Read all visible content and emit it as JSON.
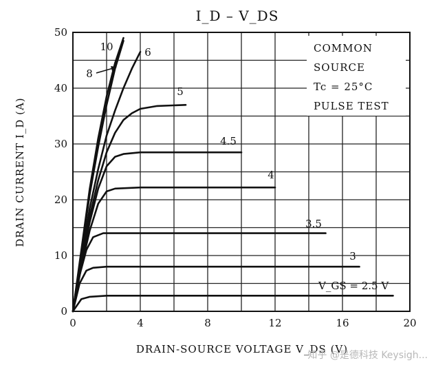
{
  "chart_data": {
    "type": "line",
    "title": "I_D – V_DS",
    "xlabel": "DRAIN-SOURCE VOLTAGE  V_DS  (V)",
    "ylabel": "DRAIN CURRENT  I_D  (A)",
    "xlim": [
      0,
      20
    ],
    "ylim": [
      0,
      50
    ],
    "x_ticks": [
      0,
      4,
      8,
      12,
      16,
      20
    ],
    "y_ticks": [
      0,
      10,
      20,
      30,
      40,
      50
    ],
    "x_grid": [
      0,
      2,
      4,
      6,
      8,
      10,
      12,
      14,
      16,
      18,
      20
    ],
    "y_grid": [
      0,
      5,
      10,
      15,
      20,
      25,
      30,
      35,
      40,
      45,
      50
    ],
    "grid": true,
    "legend": "none",
    "annotations": [
      "COMMON",
      "SOURCE",
      "Tc = 25°C",
      "PULSE TEST"
    ],
    "vgs_label_prefix": "V_GS = ",
    "vgs_label_unit": " V",
    "series": [
      {
        "label": "2.5",
        "x": [
          0,
          0.5,
          1,
          2,
          5,
          10,
          15,
          19
        ],
        "y": [
          0,
          2.2,
          2.6,
          2.8,
          2.8,
          2.8,
          2.8,
          2.8
        ]
      },
      {
        "label": "3",
        "x": [
          0,
          0.4,
          0.8,
          1.2,
          2,
          5,
          10,
          17
        ],
        "y": [
          0,
          5.0,
          7.3,
          7.8,
          8.0,
          8.0,
          8.0,
          8.0
        ]
      },
      {
        "label": "3.5",
        "x": [
          0,
          0.4,
          0.8,
          1.2,
          1.8,
          3,
          8,
          15
        ],
        "y": [
          0,
          6.5,
          11.0,
          13.3,
          14.0,
          14.0,
          14.0,
          14.0
        ]
      },
      {
        "label": "4",
        "x": [
          0,
          0.5,
          1,
          1.5,
          2,
          2.5,
          4,
          8,
          12
        ],
        "y": [
          0,
          8.0,
          14.5,
          19.3,
          21.5,
          22.0,
          22.2,
          22.2,
          22.2
        ]
      },
      {
        "label": "4.5",
        "x": [
          0,
          0.5,
          1,
          1.5,
          2,
          2.5,
          3,
          4,
          6,
          10
        ],
        "y": [
          0,
          8.5,
          16.0,
          22.0,
          26.0,
          27.7,
          28.2,
          28.5,
          28.5,
          28.5
        ]
      },
      {
        "label": "5",
        "x": [
          0,
          0.5,
          1,
          1.5,
          2,
          2.5,
          3,
          3.5,
          4,
          5,
          6.7
        ],
        "y": [
          0,
          9.0,
          17.0,
          23.5,
          28.5,
          32.0,
          34.3,
          35.5,
          36.3,
          36.8,
          37.0
        ]
      },
      {
        "label": "6",
        "x": [
          0,
          0.5,
          1,
          1.5,
          2,
          2.5,
          3,
          3.5,
          4
        ],
        "y": [
          0,
          9.5,
          18.5,
          25.5,
          31.5,
          36.0,
          40.0,
          43.5,
          46.5
        ]
      },
      {
        "label": "8",
        "x": [
          0,
          0.5,
          1,
          1.5,
          2,
          2.5,
          3
        ],
        "y": [
          0,
          10.5,
          21.0,
          29.5,
          37.0,
          43.5,
          48.5
        ]
      },
      {
        "label": "10",
        "x": [
          0,
          0.5,
          1,
          1.5,
          2,
          2.5,
          3
        ],
        "y": [
          0,
          11.0,
          22.0,
          31.0,
          38.5,
          44.5,
          49.0
        ]
      }
    ]
  },
  "watermark": "知乎 @是德科技 Keysigh..."
}
